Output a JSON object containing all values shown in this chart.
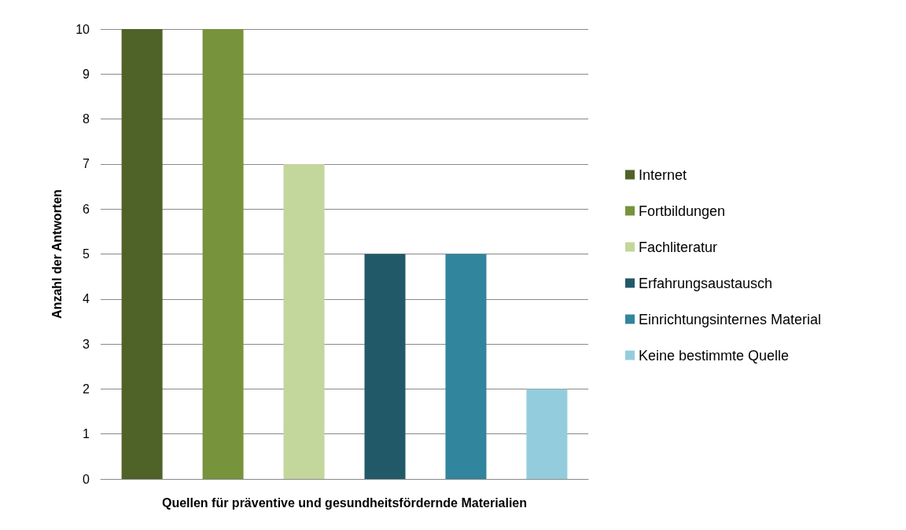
{
  "chart_data": {
    "type": "bar",
    "xlabel": "Quellen für präventive und gesundheitsfördernde Materialien",
    "ylabel": "Anzahl der Antworten",
    "categories": [
      null
    ],
    "series": [
      {
        "name": "Internet",
        "color": "#4f6228",
        "values": [
          10
        ]
      },
      {
        "name": "Fortbildungen",
        "color": "#77933c",
        "values": [
          10
        ]
      },
      {
        "name": "Fachliteratur",
        "color": "#c3d69b",
        "values": [
          7
        ]
      },
      {
        "name": "Erfahrungsaustausch",
        "color": "#215968",
        "values": [
          5
        ]
      },
      {
        "name": "Einrichtungsinternes Material",
        "color": "#31859c",
        "values": [
          5
        ]
      },
      {
        "name": "Keine bestimmte Quelle",
        "color": "#93cddd",
        "values": [
          2
        ]
      }
    ],
    "ylim": [
      0,
      10
    ],
    "yticks": [
      0,
      1,
      2,
      3,
      4,
      5,
      6,
      7,
      8,
      9,
      10
    ],
    "grid": "y",
    "legend": "right"
  }
}
